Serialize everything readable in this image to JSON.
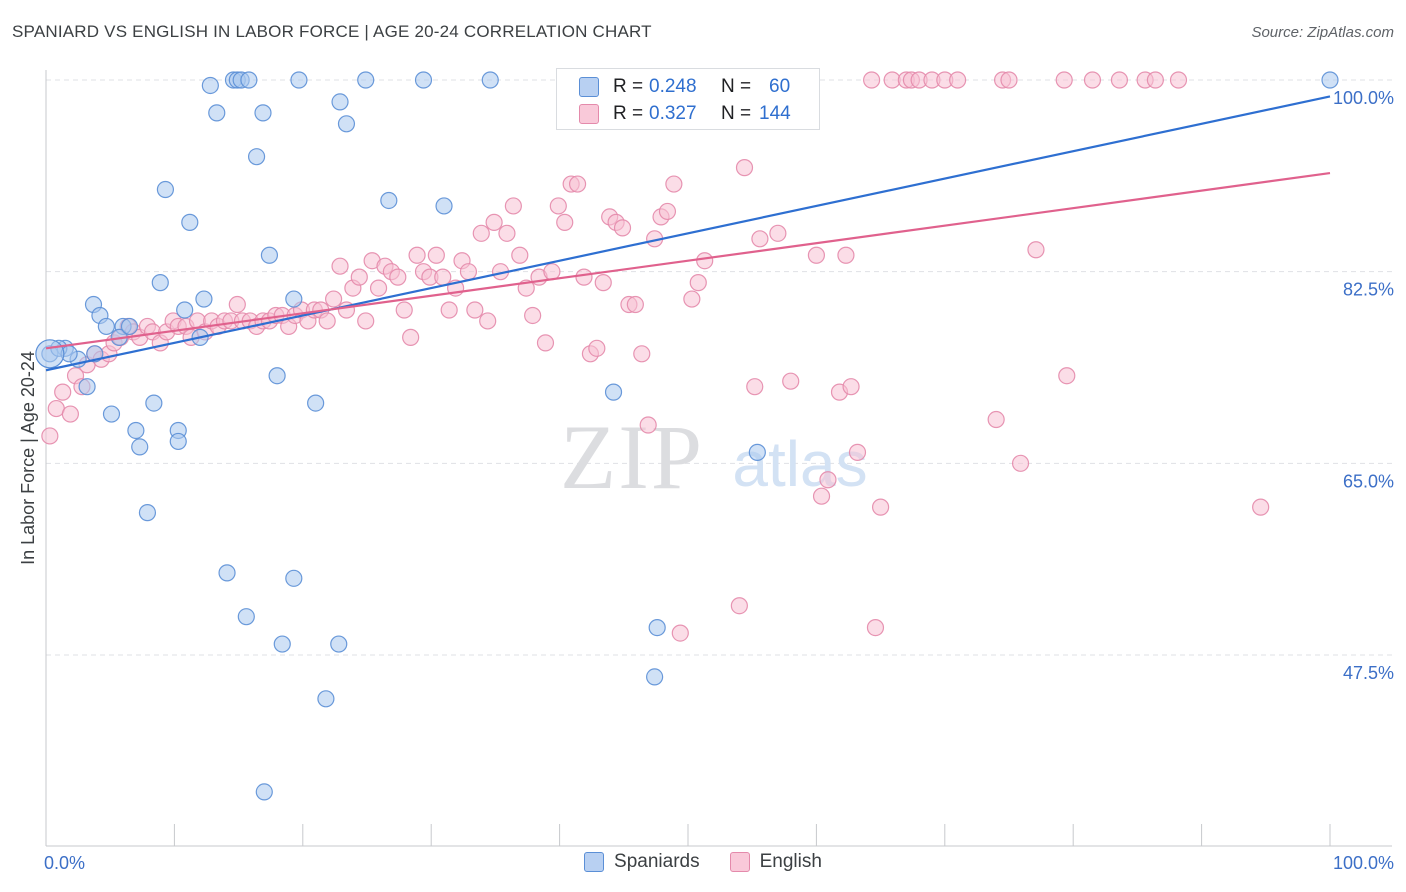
{
  "title": "SPANIARD VS ENGLISH IN LABOR FORCE | AGE 20-24 CORRELATION CHART",
  "source": "Source: ZipAtlas.com",
  "colors": {
    "spaniards_fill": "#aac8ef",
    "spaniards_stroke": "#5b8fd6",
    "spaniards_line": "#2e6fd1",
    "english_fill": "#f7c1d3",
    "english_stroke": "#e48aab",
    "english_line": "#e0618d",
    "axis_label": "#3c6fc7"
  },
  "legend_box": {
    "rows": [
      {
        "r_label": "R =",
        "r_value": "0.248",
        "n_label": "N =",
        "n_value": "60"
      },
      {
        "r_label": "R =",
        "r_value": "0.327",
        "n_label": "N =",
        "n_value": "144"
      }
    ]
  },
  "bottom_legend": {
    "spaniards": "Spaniards",
    "english": "English"
  },
  "watermark": {
    "zip": "ZIP",
    "atlas": "atlas"
  },
  "chart_data": {
    "type": "scatter",
    "title": "SPANIARD VS ENGLISH IN LABOR FORCE | AGE 20-24 CORRELATION CHART",
    "xlabel": "",
    "ylabel": "In Labor Force | Age 20-24",
    "xlim": [
      0,
      100
    ],
    "ylim": [
      28,
      102
    ],
    "x_tick_labels": [
      "0.0%",
      "100.0%"
    ],
    "y_ticks": [
      47.5,
      65.0,
      82.5,
      100.0
    ],
    "y_tick_labels": [
      "47.5%",
      "65.0%",
      "82.5%",
      "100.0%"
    ],
    "grid": true,
    "series": [
      {
        "name": "Spaniards",
        "R": 0.248,
        "N": 60,
        "trend": {
          "x": [
            0,
            100
          ],
          "y": [
            73.5,
            98.5
          ]
        },
        "points": [
          [
            0.3,
            75
          ],
          [
            1.5,
            75.5
          ],
          [
            2.5,
            74.5
          ],
          [
            1.0,
            75.5
          ],
          [
            1.8,
            75.0
          ],
          [
            3.8,
            75
          ],
          [
            3.2,
            72
          ],
          [
            3.7,
            79.5
          ],
          [
            4.2,
            78.5
          ],
          [
            4.7,
            77.5
          ],
          [
            6.0,
            77.5
          ],
          [
            5.7,
            76.5
          ],
          [
            6.5,
            77.5
          ],
          [
            5.1,
            69.5
          ],
          [
            7.0,
            68
          ],
          [
            7.3,
            66.5
          ],
          [
            7.9,
            60.5
          ],
          [
            8.4,
            70.5
          ],
          [
            8.9,
            81.5
          ],
          [
            9.3,
            90
          ],
          [
            10.3,
            68
          ],
          [
            10.3,
            67
          ],
          [
            10.8,
            79
          ],
          [
            11.2,
            87
          ],
          [
            12.0,
            76.5
          ],
          [
            12.3,
            80
          ],
          [
            12.8,
            99.5
          ],
          [
            13.3,
            97
          ],
          [
            14.1,
            55
          ],
          [
            14.6,
            100
          ],
          [
            14.9,
            100
          ],
          [
            15.2,
            100
          ],
          [
            15.6,
            51
          ],
          [
            15.8,
            100
          ],
          [
            16.4,
            93
          ],
          [
            16.9,
            97
          ],
          [
            17.0,
            35
          ],
          [
            17.4,
            84
          ],
          [
            18.0,
            73
          ],
          [
            18.4,
            48.5
          ],
          [
            19.3,
            80
          ],
          [
            19.3,
            54.5
          ],
          [
            19.7,
            100
          ],
          [
            21.0,
            70.5
          ],
          [
            21.8,
            43.5
          ],
          [
            22.8,
            48.5
          ],
          [
            22.9,
            98
          ],
          [
            23.4,
            96
          ],
          [
            24.9,
            100
          ],
          [
            26.7,
            89
          ],
          [
            29.4,
            100
          ],
          [
            31.0,
            88.5
          ],
          [
            34.6,
            100
          ],
          [
            44.2,
            71.5
          ],
          [
            47.6,
            50
          ],
          [
            47.4,
            45.5
          ],
          [
            55.4,
            66
          ],
          [
            100,
            100
          ]
        ]
      },
      {
        "name": "English",
        "R": 0.327,
        "N": 144,
        "trend": {
          "x": [
            0,
            100
          ],
          "y": [
            75.5,
            91.5
          ]
        },
        "points": [
          [
            0.3,
            67.5
          ],
          [
            0.8,
            70
          ],
          [
            1.3,
            71.5
          ],
          [
            1.9,
            69.5
          ],
          [
            2.3,
            73
          ],
          [
            2.8,
            72
          ],
          [
            3.2,
            74
          ],
          [
            3.8,
            75
          ],
          [
            4.3,
            74.5
          ],
          [
            4.9,
            75
          ],
          [
            5.3,
            76
          ],
          [
            5.8,
            76.5
          ],
          [
            6.4,
            77.5
          ],
          [
            6.8,
            77
          ],
          [
            7.3,
            76.5
          ],
          [
            7.9,
            77.5
          ],
          [
            8.3,
            77
          ],
          [
            8.9,
            76
          ],
          [
            9.4,
            77
          ],
          [
            9.9,
            78
          ],
          [
            10.3,
            77.5
          ],
          [
            10.9,
            77.5
          ],
          [
            11.3,
            76.5
          ],
          [
            11.8,
            78
          ],
          [
            12.4,
            77
          ],
          [
            12.9,
            78
          ],
          [
            13.4,
            77.5
          ],
          [
            13.9,
            78
          ],
          [
            14.4,
            78
          ],
          [
            14.9,
            79.5
          ],
          [
            15.3,
            78
          ],
          [
            15.9,
            78
          ],
          [
            16.4,
            77.5
          ],
          [
            16.9,
            78
          ],
          [
            17.4,
            78
          ],
          [
            17.9,
            78.5
          ],
          [
            18.4,
            78.5
          ],
          [
            18.9,
            77.5
          ],
          [
            19.4,
            78.5
          ],
          [
            19.9,
            79
          ],
          [
            20.4,
            78
          ],
          [
            20.9,
            79
          ],
          [
            21.4,
            79
          ],
          [
            21.9,
            78
          ],
          [
            22.4,
            80
          ],
          [
            22.9,
            83
          ],
          [
            23.4,
            79
          ],
          [
            23.9,
            81
          ],
          [
            24.4,
            82
          ],
          [
            24.9,
            78
          ],
          [
            25.4,
            83.5
          ],
          [
            25.9,
            81
          ],
          [
            26.4,
            83
          ],
          [
            26.9,
            82.5
          ],
          [
            27.4,
            82
          ],
          [
            27.9,
            79
          ],
          [
            28.4,
            76.5
          ],
          [
            28.9,
            84
          ],
          [
            29.4,
            82.5
          ],
          [
            29.9,
            82
          ],
          [
            30.4,
            84
          ],
          [
            30.9,
            82
          ],
          [
            31.4,
            79
          ],
          [
            31.9,
            81
          ],
          [
            32.4,
            83.5
          ],
          [
            32.9,
            82.5
          ],
          [
            33.4,
            79
          ],
          [
            33.9,
            86
          ],
          [
            34.4,
            78
          ],
          [
            34.9,
            87
          ],
          [
            35.4,
            82.5
          ],
          [
            35.9,
            86
          ],
          [
            36.4,
            88.5
          ],
          [
            36.9,
            84
          ],
          [
            37.4,
            81
          ],
          [
            37.9,
            78.5
          ],
          [
            38.4,
            82
          ],
          [
            38.9,
            76
          ],
          [
            39.4,
            82.5
          ],
          [
            39.9,
            88.5
          ],
          [
            40.4,
            87
          ],
          [
            40.9,
            90.5
          ],
          [
            41.4,
            90.5
          ],
          [
            41.9,
            82
          ],
          [
            42.4,
            75
          ],
          [
            42.9,
            75.5
          ],
          [
            43.4,
            81.5
          ],
          [
            43.9,
            87.5
          ],
          [
            44.4,
            87
          ],
          [
            44.9,
            86.5
          ],
          [
            45.4,
            79.5
          ],
          [
            45.9,
            79.5
          ],
          [
            46.4,
            75
          ],
          [
            46.9,
            68.5
          ],
          [
            47.4,
            85.5
          ],
          [
            47.9,
            87.5
          ],
          [
            48.4,
            88
          ],
          [
            48.9,
            90.5
          ],
          [
            49.4,
            49.5
          ],
          [
            50.3,
            80
          ],
          [
            50.8,
            81.5
          ],
          [
            51.3,
            83.5
          ],
          [
            52.3,
            100
          ],
          [
            53.7,
            100
          ],
          [
            54.0,
            52
          ],
          [
            54.4,
            92
          ],
          [
            55.2,
            72
          ],
          [
            55.6,
            85.5
          ],
          [
            57.0,
            86
          ],
          [
            58.0,
            72.5
          ],
          [
            59.3,
            100
          ],
          [
            60.0,
            84
          ],
          [
            60.4,
            62
          ],
          [
            60.9,
            63.5
          ],
          [
            61.8,
            71.5
          ],
          [
            62.3,
            84
          ],
          [
            62.7,
            72
          ],
          [
            63.2,
            66
          ],
          [
            64.3,
            100
          ],
          [
            64.6,
            50
          ],
          [
            65.0,
            61
          ],
          [
            65.9,
            100
          ],
          [
            67.0,
            100
          ],
          [
            67.4,
            100
          ],
          [
            68.0,
            100
          ],
          [
            69.0,
            100
          ],
          [
            70.0,
            100
          ],
          [
            71.0,
            100
          ],
          [
            74.0,
            69
          ],
          [
            74.5,
            100
          ],
          [
            75.0,
            100
          ],
          [
            75.9,
            65
          ],
          [
            77.1,
            84.5
          ],
          [
            79.3,
            100
          ],
          [
            79.5,
            73
          ],
          [
            81.5,
            100
          ],
          [
            83.6,
            100
          ],
          [
            85.6,
            100
          ],
          [
            86.4,
            100
          ],
          [
            88.2,
            100
          ],
          [
            94.6,
            61
          ]
        ]
      }
    ]
  }
}
